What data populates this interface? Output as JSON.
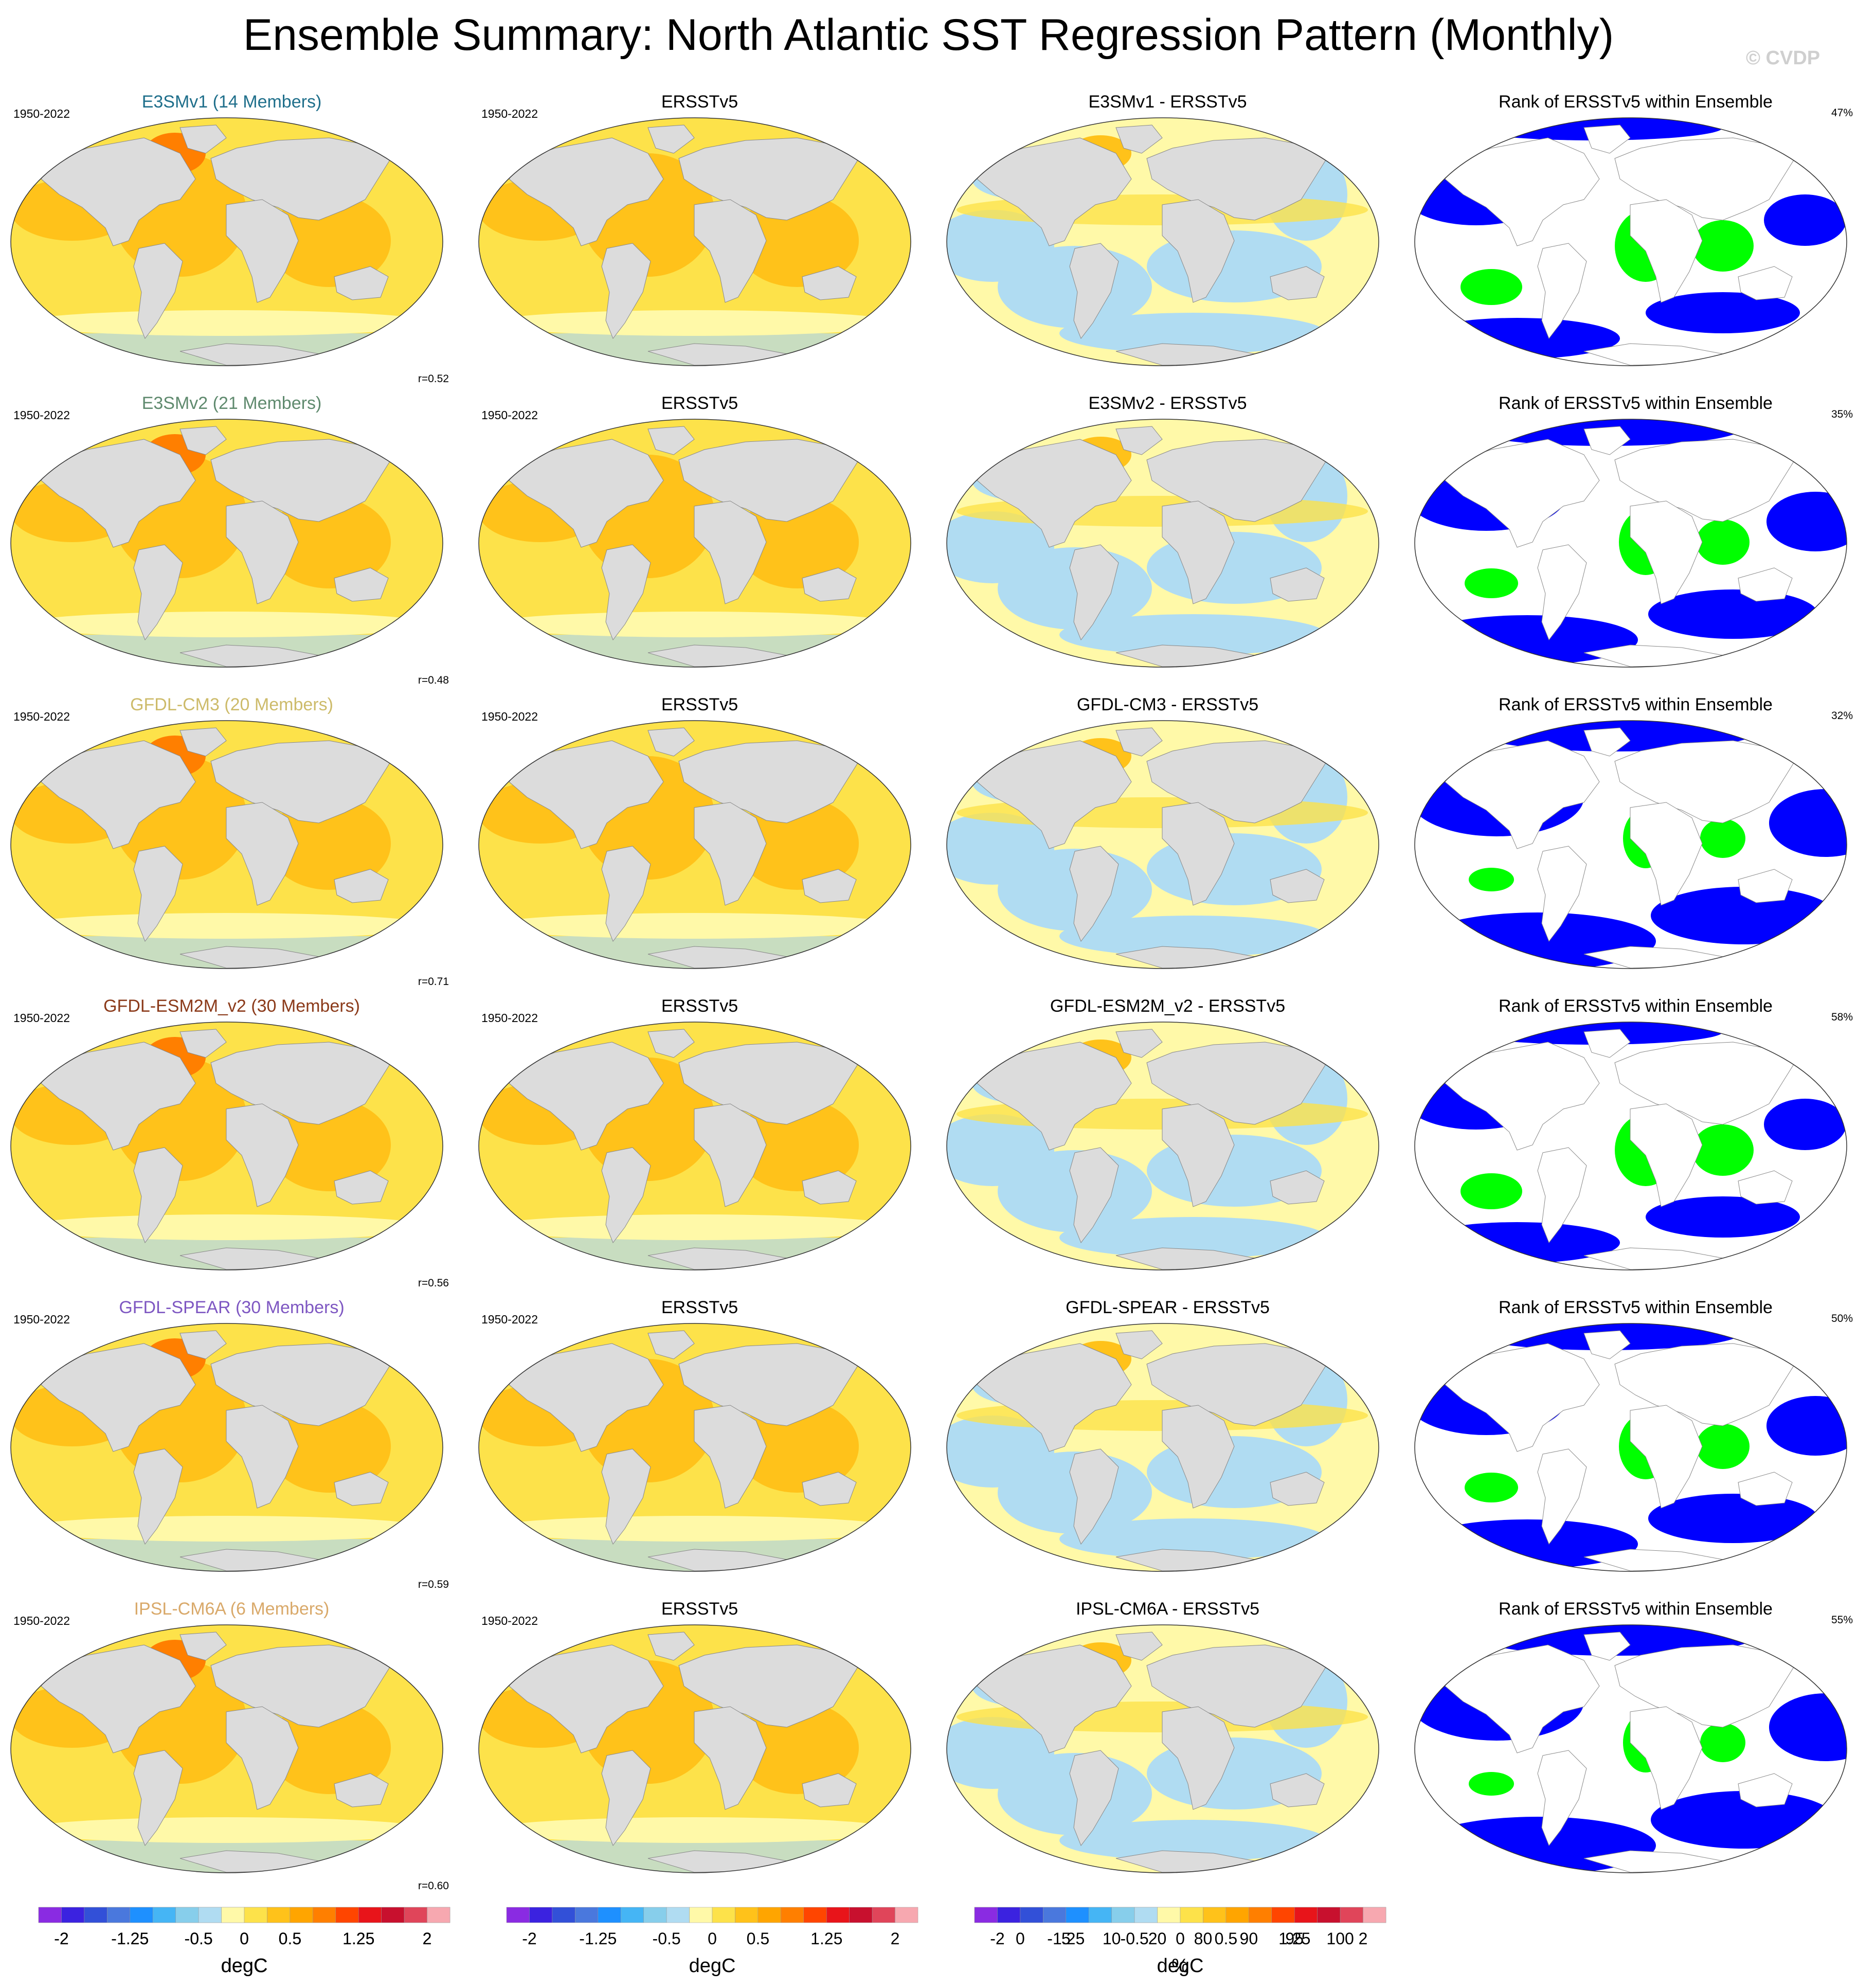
{
  "title": "Ensemble Summary: North Atlantic SST Regression Pattern (Monthly)",
  "watermark": "© CVDP",
  "chart_data": {
    "type": "heatmap",
    "description_units": "degC",
    "rows": [
      {
        "model": "E3SMv1",
        "model_label": "E3SMv1 (14 Members)",
        "model_color": "#1f6f8b",
        "years": "1950-2022",
        "obs_label": "ERSSTv5",
        "diff_label": "E3SMv1 - ERSSTv5",
        "rank_label": "Rank of ERSSTv5 within Ensemble",
        "rank_pct": "47%",
        "corr": "r=0.52"
      },
      {
        "model": "E3SMv2",
        "model_label": "E3SMv2 (21 Members)",
        "model_color": "#5f8a6e",
        "years": "1950-2022",
        "obs_label": "ERSSTv5",
        "diff_label": "E3SMv2 - ERSSTv5",
        "rank_label": "Rank of ERSSTv5 within Ensemble",
        "rank_pct": "35%",
        "corr": "r=0.48"
      },
      {
        "model": "GFDL-CM3",
        "model_label": "GFDL-CM3 (20 Members)",
        "model_color": "#cdbb6a",
        "years": "1950-2022",
        "obs_label": "ERSSTv5",
        "diff_label": "GFDL-CM3 - ERSSTv5",
        "rank_label": "Rank of ERSSTv5 within Ensemble",
        "rank_pct": "32%",
        "corr": "r=0.71"
      },
      {
        "model": "GFDL-ESM2M_v2",
        "model_label": "GFDL-ESM2M_v2 (30 Members)",
        "model_color": "#8b3a1a",
        "years": "1950-2022",
        "obs_label": "ERSSTv5",
        "diff_label": "GFDL-ESM2M_v2 - ERSSTv5",
        "rank_label": "Rank of ERSSTv5 within Ensemble",
        "rank_pct": "58%",
        "corr": "r=0.56"
      },
      {
        "model": "GFDL-SPEAR",
        "model_label": "GFDL-SPEAR (30 Members)",
        "model_color": "#7e57c2",
        "years": "1950-2022",
        "obs_label": "ERSSTv5",
        "diff_label": "GFDL-SPEAR - ERSSTv5",
        "rank_label": "Rank of ERSSTv5 within Ensemble",
        "rank_pct": "50%",
        "corr": "r=0.59"
      },
      {
        "model": "IPSL-CM6A",
        "model_label": "IPSL-CM6A (6 Members)",
        "model_color": "#d9a96a",
        "years": "1950-2022",
        "obs_label": "ERSSTv5",
        "diff_label": "IPSL-CM6A - ERSSTv5",
        "rank_label": "Rank of ERSSTv5 within Ensemble",
        "rank_pct": "55%",
        "corr": "r=0.60"
      }
    ],
    "colorbar_sst": {
      "unit": "degC",
      "tick_labels": [
        "-2",
        "-1.25",
        "-0.5",
        "0",
        "0.5",
        "1.25",
        "2"
      ],
      "colors": [
        "#8a2be2",
        "#3b22e0",
        "#3250d8",
        "#4a78dd",
        "#1e90ff",
        "#45b5f5",
        "#87ceeb",
        "#b0dcf2",
        "#fff9a8",
        "#fde24a",
        "#ffc21a",
        "#ffa500",
        "#ff7f00",
        "#ff4500",
        "#e8141a",
        "#c8102e",
        "#e0455a",
        "#f7a8b0"
      ]
    },
    "colorbar_rank": {
      "unit": "%",
      "tick_labels": [
        "0",
        "5",
        "10",
        "20",
        "80",
        "90",
        "95",
        "100"
      ],
      "colors": [
        "#0000ff",
        "#6a6aff",
        "#b0b0ff",
        "#dcdcff",
        "#ffffff",
        "#dcffdc",
        "#aaffaa",
        "#66ff66",
        "#00ff00"
      ]
    },
    "map_colors": {
      "land": "#dcdcdc",
      "rank_land": "#ffffff",
      "low_rank": "#0000ff",
      "high_rank": "#00ff00"
    }
  }
}
